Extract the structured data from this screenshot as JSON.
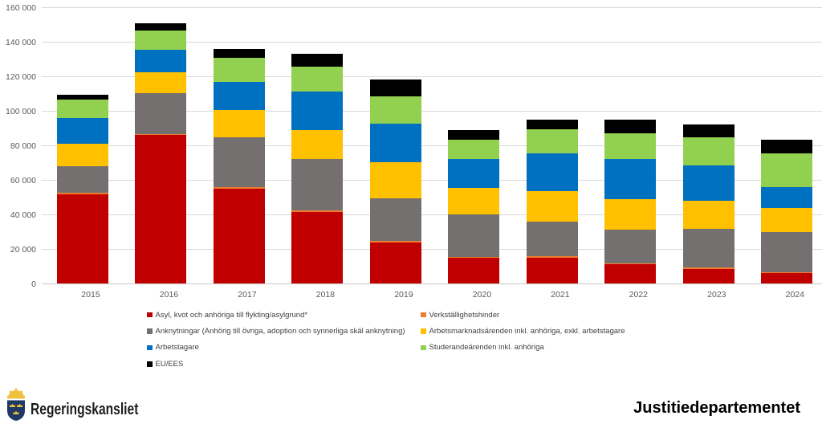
{
  "chart_data": {
    "type": "bar",
    "stacked": true,
    "title": "",
    "categories": [
      "2015",
      "2016",
      "2017",
      "2018",
      "2019",
      "2020",
      "2021",
      "2022",
      "2023",
      "2024"
    ],
    "series": [
      {
        "name": "Asyl, kvot och anhöriga till flykting/asylgrund*",
        "color": "#C00000",
        "values": [
          51800,
          86000,
          54900,
          41500,
          23900,
          14700,
          15000,
          11300,
          8400,
          6000
        ]
      },
      {
        "name": "Verkställighetshinder",
        "color": "#ED7D31",
        "values": [
          700,
          600,
          1000,
          900,
          800,
          800,
          800,
          300,
          900,
          600
        ]
      },
      {
        "name": "Anknytningar (Anhörig till övriga, adoption och synnerliga skäl anknytning)",
        "color": "#757070",
        "values": [
          15400,
          23700,
          28750,
          29500,
          24750,
          24300,
          20150,
          19700,
          22500,
          23150
        ]
      },
      {
        "name": "Arbetsmarknadsärenden inkl. anhöriga, exkl. arbetstagare",
        "color": "#FFC000",
        "values": [
          13100,
          12100,
          15950,
          17100,
          20650,
          15550,
          17550,
          17550,
          15900,
          13950
        ]
      },
      {
        "name": "Arbetstagare",
        "color": "#0070C0",
        "values": [
          14900,
          13000,
          16300,
          22200,
          22450,
          16750,
          22000,
          23250,
          20500,
          12100
        ]
      },
      {
        "name": "Studerandeärenden inkl. anhöriga",
        "color": "#92D050",
        "values": [
          10800,
          11200,
          13900,
          14200,
          15850,
          11150,
          13600,
          14700,
          16300,
          19400
        ]
      },
      {
        "name": "EU/EES",
        "color": "#000000",
        "values": [
          2500,
          4200,
          5000,
          7600,
          9700,
          5750,
          5800,
          8100,
          7400,
          8200
        ]
      }
    ],
    "ylim": [
      0,
      160000
    ],
    "ytick_step": 20000,
    "ytick_labels": [
      "0",
      "20 000",
      "40 000",
      "60 000",
      "80 000",
      "100 000",
      "120 000",
      "140 000",
      "160 000"
    ],
    "grid": true,
    "legend_position": "bottom-left-two-columns"
  },
  "footer": {
    "organization": "Regeringskansliet",
    "department": "Justitiedepartementet"
  },
  "colors": {
    "gridline": "#D9D9D9",
    "axis_text": "#595959",
    "legend_text": "#3f3f3f",
    "logo_shield": "#1F3864",
    "logo_gold": "#EDC23F"
  }
}
